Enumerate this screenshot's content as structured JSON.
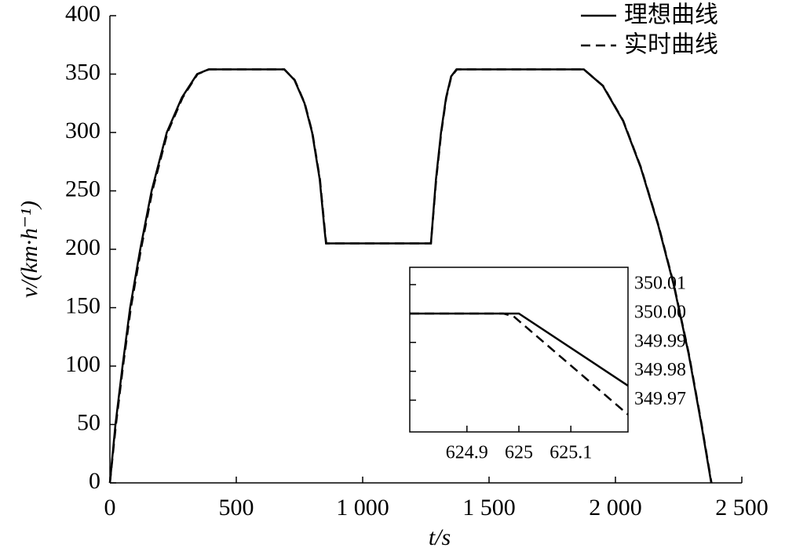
{
  "chart_data": [
    {
      "type": "line",
      "x_label": "t/s",
      "y_label": "v/(km·h⁻¹)",
      "legend": "upper right",
      "xlim": [
        0,
        2500
      ],
      "ylim": [
        0,
        400
      ],
      "xticks": [
        0,
        500,
        {
          "value": 1000,
          "label": "1 000"
        },
        {
          "value": 1500,
          "label": "1 500"
        },
        {
          "value": 2000,
          "label": "2 000"
        },
        {
          "value": 2500,
          "label": "2 500"
        }
      ],
      "yticks": [
        0,
        50,
        100,
        150,
        200,
        250,
        300,
        350,
        400
      ],
      "series": [
        {
          "name": "理想曲线",
          "color": "#000000",
          "dash": "solid",
          "x": [
            0,
            22,
            50,
            80,
            120,
            165,
            225,
            285,
            345,
            390,
            690,
            730,
            770,
            800,
            830,
            850,
            855,
            1270,
            1290,
            1310,
            1330,
            1350,
            1371,
            1875,
            1950,
            2030,
            2100,
            2170,
            2230,
            2290,
            2340,
            2379
          ],
          "values": [
            0,
            50,
            100,
            150,
            200,
            250,
            300,
            330,
            350,
            354,
            354,
            345,
            325,
            300,
            260,
            215,
            205,
            205,
            260,
            300,
            330,
            348,
            354,
            354,
            340,
            310,
            270,
            220,
            170,
            110,
            50,
            0
          ]
        },
        {
          "name": "实时曲线",
          "color": "#000000",
          "dash": "dashed",
          "x": [
            0,
            24,
            52,
            83,
            123,
            168,
            228,
            288,
            347,
            392,
            690,
            731,
            771,
            801,
            831,
            851,
            856,
            1270,
            1291,
            1311,
            1331,
            1351,
            1373,
            1875,
            1951,
            2031,
            2101,
            2171,
            2231,
            2291,
            2341,
            2380
          ],
          "values": [
            0,
            50,
            100,
            150,
            200,
            250,
            300,
            330,
            350,
            354,
            354,
            345,
            325,
            300,
            260,
            215,
            205,
            205,
            260,
            300,
            330,
            348,
            354,
            354,
            340,
            310,
            270,
            220,
            170,
            110,
            50,
            0
          ]
        }
      ]
    },
    {
      "type": "line",
      "xlim": [
        624.79,
        625.21
      ],
      "ylim": [
        349.959,
        350.016
      ],
      "xticks": [
        624.9,
        625,
        625.1
      ],
      "yticks": [
        350.01,
        {
          "value": 350,
          "label": "350.00"
        },
        349.99,
        349.98,
        349.97
      ],
      "series": [
        {
          "name": "理想曲线",
          "color": "#000000",
          "dash": "solid",
          "x": [
            624.79,
            625.0,
            625.21
          ],
          "values": [
            350,
            350,
            349.975
          ]
        },
        {
          "name": "实时曲线",
          "color": "#000000",
          "dash": "dashed",
          "x": [
            624.79,
            624.97,
            624.99,
            625.21
          ],
          "values": [
            350,
            350,
            349.999,
            349.965
          ]
        }
      ]
    }
  ]
}
